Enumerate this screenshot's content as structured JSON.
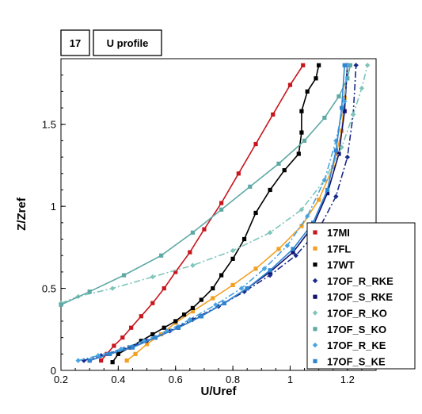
{
  "header": {
    "case_label": "17",
    "profile_label": "U profile"
  },
  "chart_data": {
    "type": "line",
    "xlabel": "U/Uref",
    "ylabel": "Z/Zref",
    "xlim": [
      0.2,
      1.3
    ],
    "ylim": [
      0,
      1.9
    ],
    "xticks": [
      0.2,
      0.4,
      0.6,
      0.8,
      1,
      1.2
    ],
    "xtick_labels": [
      "0.2",
      "0.4",
      "0.6",
      "0.8",
      "1",
      "1.2"
    ],
    "yticks": [
      0,
      0.5,
      1,
      1.5
    ],
    "ytick_labels": [
      "0",
      "0.5",
      "1",
      "1.5"
    ],
    "grid": false,
    "legend_position": "bottom-right",
    "series": [
      {
        "name": "17MI",
        "color": "#c8161d",
        "marker": "square",
        "dash": "solid",
        "x": [
          0.34,
          0.36,
          0.385,
          0.415,
          0.445,
          0.48,
          0.52,
          0.56,
          0.6,
          0.65,
          0.7,
          0.76,
          0.82,
          0.88,
          0.94,
          1.0,
          1.045
        ],
        "y": [
          0.06,
          0.1,
          0.15,
          0.2,
          0.26,
          0.33,
          0.41,
          0.5,
          0.6,
          0.72,
          0.86,
          1.02,
          1.2,
          1.38,
          1.56,
          1.74,
          1.86
        ]
      },
      {
        "name": "17FL",
        "color": "#f2a023",
        "marker": "square",
        "dash": "solid",
        "x": [
          0.43,
          0.46,
          0.5,
          0.55,
          0.6,
          0.66,
          0.73,
          0.8,
          0.88,
          0.96,
          1.04,
          1.1,
          1.15,
          1.18,
          1.19,
          1.2
        ],
        "y": [
          0.06,
          0.1,
          0.16,
          0.22,
          0.29,
          0.36,
          0.44,
          0.52,
          0.62,
          0.74,
          0.88,
          1.04,
          1.24,
          1.46,
          1.66,
          1.86
        ]
      },
      {
        "name": "17WT",
        "color": "#000000",
        "marker": "square",
        "dash": "solid",
        "x": [
          0.38,
          0.4,
          0.44,
          0.48,
          0.52,
          0.56,
          0.6,
          0.63,
          0.66,
          0.69,
          0.73,
          0.76,
          0.8,
          0.84,
          0.88,
          0.93,
          0.98,
          1.03,
          1.04,
          1.04,
          1.06,
          1.09,
          1.1
        ],
        "y": [
          0.05,
          0.1,
          0.14,
          0.18,
          0.22,
          0.26,
          0.3,
          0.34,
          0.38,
          0.43,
          0.5,
          0.58,
          0.68,
          0.8,
          0.96,
          1.1,
          1.22,
          1.32,
          1.45,
          1.58,
          1.7,
          1.78,
          1.86
        ]
      },
      {
        "name": "17OF_R_RKE",
        "color": "#1b2a8c",
        "marker": "diamond",
        "dash": "dashdot",
        "x": [
          0.28,
          0.34,
          0.42,
          0.5,
          0.58,
          0.66,
          0.75,
          0.84,
          0.93,
          1.02,
          1.1,
          1.16,
          1.2,
          1.22,
          1.23
        ],
        "y": [
          0.06,
          0.09,
          0.13,
          0.18,
          0.24,
          0.31,
          0.39,
          0.48,
          0.58,
          0.7,
          0.86,
          1.06,
          1.3,
          1.56,
          1.86
        ]
      },
      {
        "name": "17OF_S_RKE",
        "color": "#10106e",
        "marker": "square",
        "dash": "solid",
        "x": [
          0.3,
          0.37,
          0.45,
          0.53,
          0.61,
          0.69,
          0.77,
          0.85,
          0.93,
          1.01,
          1.08,
          1.13,
          1.17,
          1.19,
          1.2
        ],
        "y": [
          0.06,
          0.1,
          0.14,
          0.2,
          0.26,
          0.33,
          0.41,
          0.5,
          0.6,
          0.72,
          0.88,
          1.08,
          1.32,
          1.58,
          1.86
        ]
      },
      {
        "name": "17OF_R_KO",
        "color": "#7ec5ba",
        "marker": "diamond",
        "dash": "dashdot",
        "x": [
          0.2,
          0.26,
          0.38,
          0.52,
          0.66,
          0.8,
          0.93,
          1.04,
          1.12,
          1.18,
          1.22,
          1.25,
          1.27
        ],
        "y": [
          0.41,
          0.45,
          0.5,
          0.57,
          0.64,
          0.73,
          0.84,
          0.98,
          1.16,
          1.36,
          1.56,
          1.72,
          1.86
        ]
      },
      {
        "name": "17OF_S_KO",
        "color": "#5ea9a4",
        "marker": "square",
        "dash": "solid",
        "x": [
          0.2,
          0.3,
          0.42,
          0.55,
          0.66,
          0.76,
          0.86,
          0.96,
          1.05,
          1.12,
          1.17,
          1.2,
          1.21
        ],
        "y": [
          0.4,
          0.48,
          0.58,
          0.7,
          0.84,
          0.98,
          1.12,
          1.26,
          1.4,
          1.54,
          1.67,
          1.78,
          1.86
        ]
      },
      {
        "name": "17OF_R_KE",
        "color": "#47a3e3",
        "marker": "diamond",
        "dash": "dashdot",
        "x": [
          0.26,
          0.33,
          0.41,
          0.49,
          0.57,
          0.65,
          0.74,
          0.83,
          0.91,
          0.99,
          1.06,
          1.12,
          1.16,
          1.19,
          1.2
        ],
        "y": [
          0.06,
          0.09,
          0.13,
          0.18,
          0.24,
          0.31,
          0.4,
          0.5,
          0.62,
          0.76,
          0.94,
          1.16,
          1.4,
          1.64,
          1.86
        ]
      },
      {
        "name": "17OF_S_KE",
        "color": "#2f86d0",
        "marker": "square",
        "dash": "solid",
        "x": [
          0.3,
          0.37,
          0.45,
          0.53,
          0.61,
          0.69,
          0.77,
          0.85,
          0.93,
          1.01,
          1.08,
          1.13,
          1.16,
          1.18,
          1.19
        ],
        "y": [
          0.06,
          0.1,
          0.14,
          0.2,
          0.26,
          0.33,
          0.41,
          0.5,
          0.61,
          0.74,
          0.9,
          1.1,
          1.34,
          1.6,
          1.86
        ]
      }
    ]
  }
}
